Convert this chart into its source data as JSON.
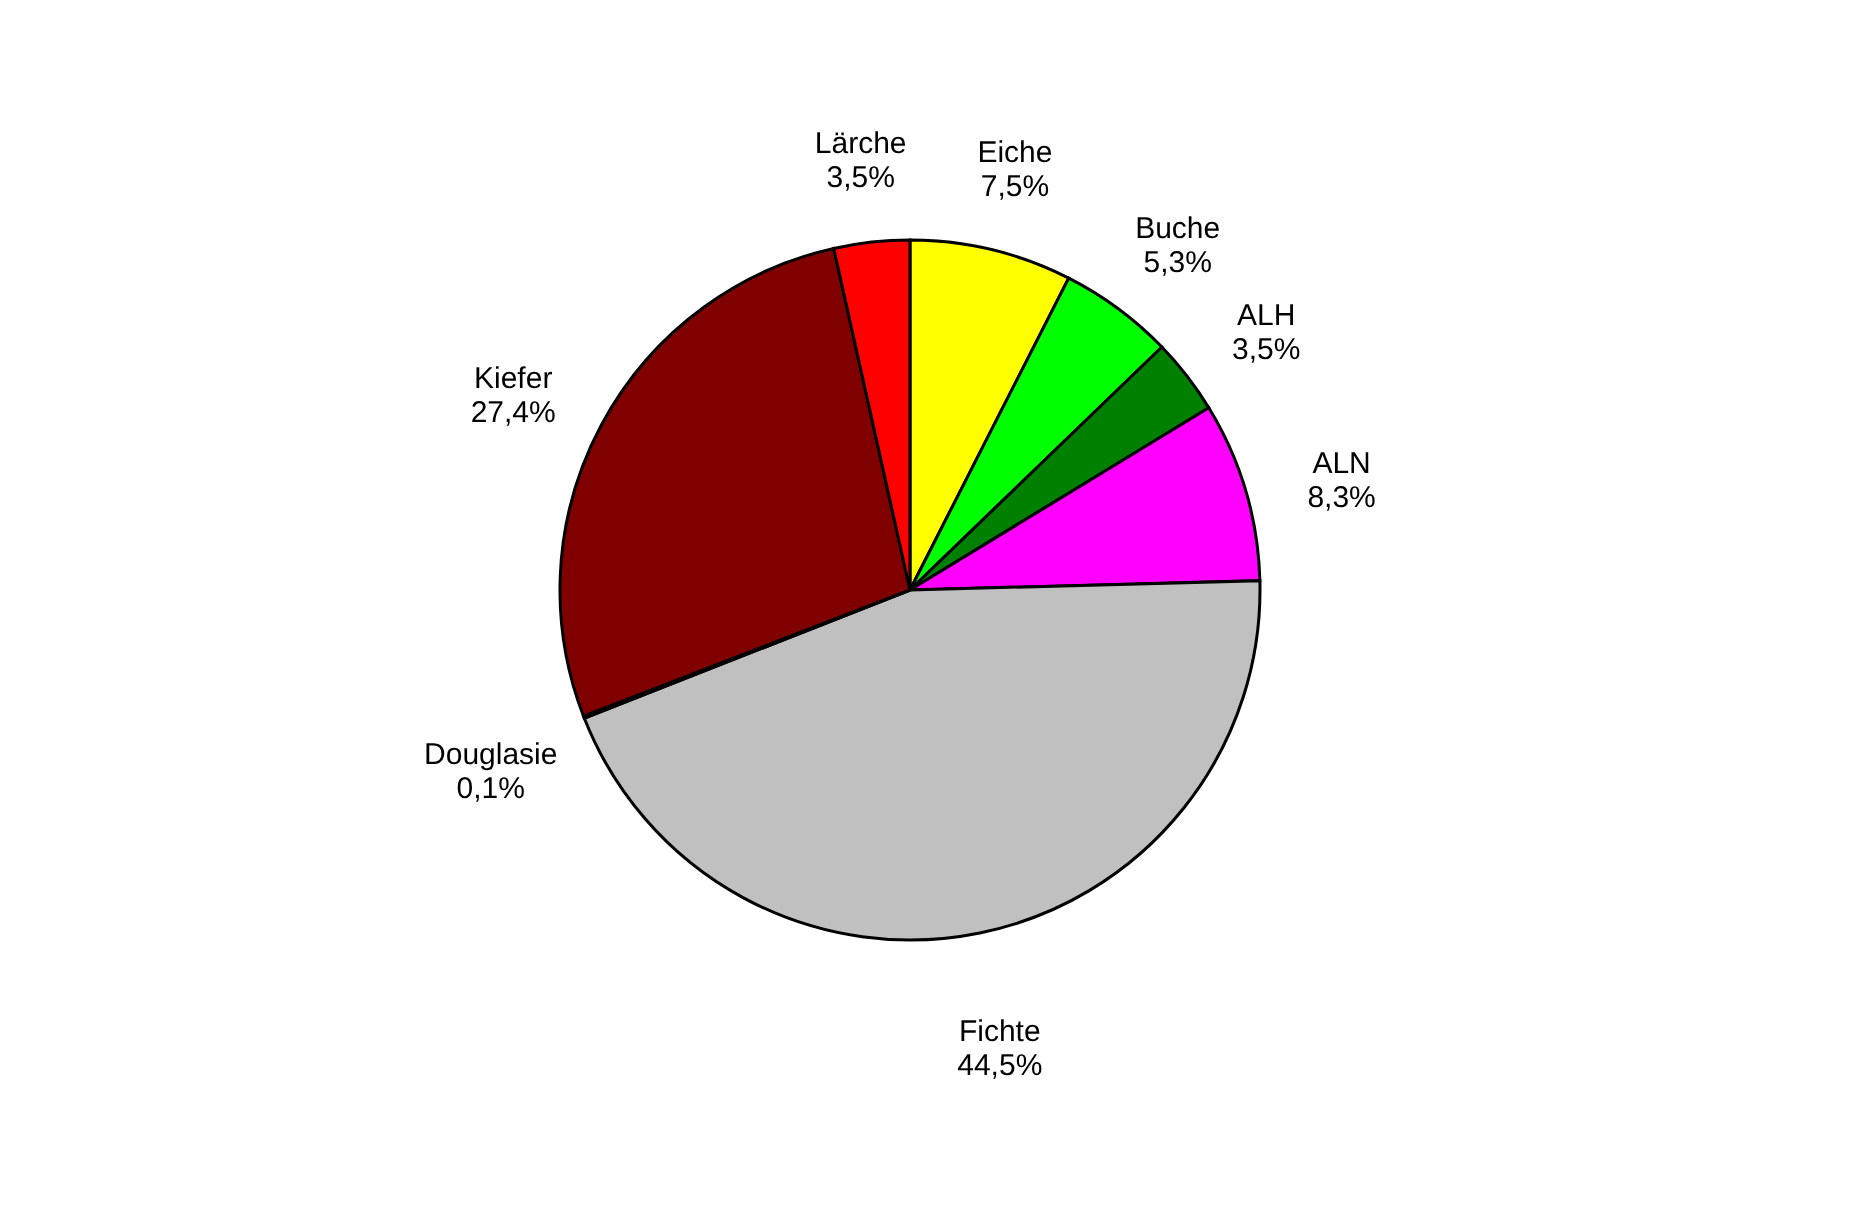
{
  "chart_data": {
    "type": "pie",
    "categories": [
      "Eiche",
      "Buche",
      "ALH",
      "ALN",
      "Fichte",
      "Douglasie",
      "Kiefer",
      "Lärche"
    ],
    "values": [
      7.5,
      5.3,
      3.5,
      8.3,
      44.5,
      0.1,
      27.4,
      3.5
    ],
    "value_labels": [
      "7,5%",
      "5,3%",
      "3,5%",
      "8,3%",
      "44,5%",
      "0,1%",
      "27,4%",
      "3,5%"
    ],
    "colors": [
      "#ffff00",
      "#00ff00",
      "#008000",
      "#ff00ff",
      "#c0c0c0",
      "#000080",
      "#800000",
      "#ff0000"
    ],
    "legend": false
  }
}
